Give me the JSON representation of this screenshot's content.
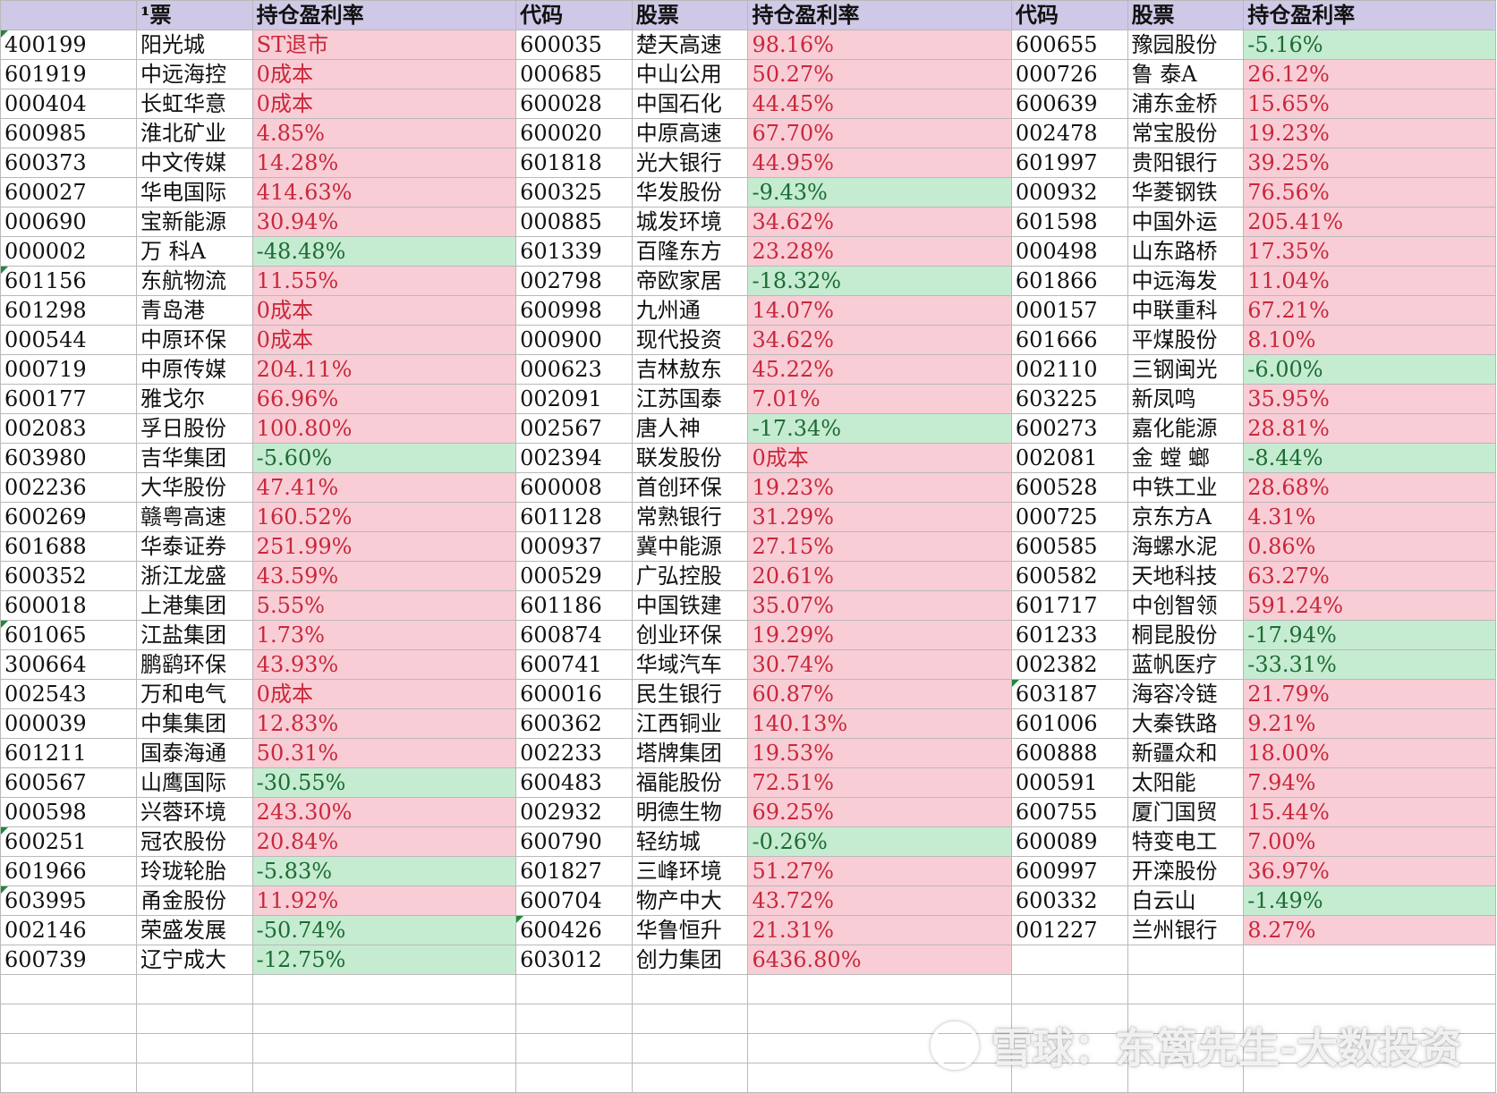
{
  "header_first": {
    "code": "",
    "stock": "¹票",
    "ratio": "持仓盈利率"
  },
  "header": {
    "code": "代码",
    "stock": "股票",
    "ratio": "持仓盈利率"
  },
  "groups": [
    [
      [
        "400199",
        "阳光城",
        "ST退市"
      ],
      [
        "601919",
        "中远海控",
        "0成本"
      ],
      [
        "000404",
        "长虹华意",
        "0成本"
      ],
      [
        "600985",
        "淮北矿业",
        "4.85%"
      ],
      [
        "600373",
        "中文传媒",
        "14.28%"
      ],
      [
        "600027",
        "华电国际",
        "414.63%"
      ],
      [
        "000690",
        "宝新能源",
        "30.94%"
      ],
      [
        "000002",
        "万 科A",
        "-48.48%"
      ],
      [
        "601156",
        "东航物流",
        "11.55%"
      ],
      [
        "601298",
        "青岛港",
        "0成本"
      ],
      [
        "000544",
        "中原环保",
        "0成本"
      ],
      [
        "000719",
        "中原传媒",
        "204.11%"
      ],
      [
        "600177",
        "雅戈尔",
        "66.96%"
      ],
      [
        "002083",
        "孚日股份",
        "100.80%"
      ],
      [
        "603980",
        "吉华集团",
        "-5.60%"
      ],
      [
        "002236",
        "大华股份",
        "47.41%"
      ],
      [
        "600269",
        "赣粤高速",
        "160.52%"
      ],
      [
        "601688",
        "华泰证券",
        "251.99%"
      ],
      [
        "600352",
        "浙江龙盛",
        "43.59%"
      ],
      [
        "600018",
        "上港集团",
        "5.55%"
      ],
      [
        "601065",
        "江盐集团",
        "1.73%"
      ],
      [
        "300664",
        "鹏鹞环保",
        "43.93%"
      ],
      [
        "002543",
        "万和电气",
        "0成本"
      ],
      [
        "000039",
        "中集集团",
        "12.83%"
      ],
      [
        "601211",
        "国泰海通",
        "50.31%"
      ],
      [
        "600567",
        "山鹰国际",
        "-30.55%"
      ],
      [
        "000598",
        "兴蓉环境",
        "243.30%"
      ],
      [
        "600251",
        "冠农股份",
        "20.84%"
      ],
      [
        "601966",
        "玲珑轮胎",
        "-5.83%"
      ],
      [
        "603995",
        "甬金股份",
        "11.92%"
      ],
      [
        "002146",
        "荣盛发展",
        "-50.74%"
      ],
      [
        "600739",
        "辽宁成大",
        "-12.75%"
      ]
    ],
    [
      [
        "600035",
        "楚天高速",
        "98.16%"
      ],
      [
        "000685",
        "中山公用",
        "50.27%"
      ],
      [
        "600028",
        "中国石化",
        "44.45%"
      ],
      [
        "600020",
        "中原高速",
        "67.70%"
      ],
      [
        "601818",
        "光大银行",
        "44.95%"
      ],
      [
        "600325",
        "华发股份",
        "-9.43%"
      ],
      [
        "000885",
        "城发环境",
        "34.62%"
      ],
      [
        "601339",
        "百隆东方",
        "23.28%"
      ],
      [
        "002798",
        "帝欧家居",
        "-18.32%"
      ],
      [
        "600998",
        "九州通",
        "14.07%"
      ],
      [
        "000900",
        "现代投资",
        "34.62%"
      ],
      [
        "000623",
        "吉林敖东",
        "45.22%"
      ],
      [
        "002091",
        "江苏国泰",
        "7.01%"
      ],
      [
        "002567",
        "唐人神",
        "-17.34%"
      ],
      [
        "002394",
        "联发股份",
        "0成本"
      ],
      [
        "600008",
        "首创环保",
        "19.23%"
      ],
      [
        "601128",
        "常熟银行",
        "31.29%"
      ],
      [
        "000937",
        "冀中能源",
        "27.15%"
      ],
      [
        "000529",
        "广弘控股",
        "20.61%"
      ],
      [
        "601186",
        "中国铁建",
        "35.07%"
      ],
      [
        "600874",
        "创业环保",
        "19.29%"
      ],
      [
        "600741",
        "华域汽车",
        "30.74%"
      ],
      [
        "600016",
        "民生银行",
        "60.87%"
      ],
      [
        "600362",
        "江西铜业",
        "140.13%"
      ],
      [
        "002233",
        "塔牌集团",
        "19.53%"
      ],
      [
        "600483",
        "福能股份",
        "72.51%"
      ],
      [
        "002932",
        "明德生物",
        "69.25%"
      ],
      [
        "600790",
        "轻纺城",
        "-0.26%"
      ],
      [
        "601827",
        "三峰环境",
        "51.27%"
      ],
      [
        "600704",
        "物产中大",
        "43.72%"
      ],
      [
        "600426",
        "华鲁恒升",
        "21.31%"
      ],
      [
        "603012",
        "创力集团",
        "6436.80%"
      ]
    ],
    [
      [
        "600655",
        "豫园股份",
        "-5.16%"
      ],
      [
        "000726",
        "鲁 泰A",
        "26.12%"
      ],
      [
        "600639",
        "浦东金桥",
        "15.65%"
      ],
      [
        "002478",
        "常宝股份",
        "19.23%"
      ],
      [
        "601997",
        "贵阳银行",
        "39.25%"
      ],
      [
        "000932",
        "华菱钢铁",
        "76.56%"
      ],
      [
        "601598",
        "中国外运",
        "205.41%"
      ],
      [
        "000498",
        "山东路桥",
        "17.35%"
      ],
      [
        "601866",
        "中远海发",
        "11.04%"
      ],
      [
        "000157",
        "中联重科",
        "67.21%"
      ],
      [
        "601666",
        "平煤股份",
        "8.10%"
      ],
      [
        "002110",
        "三钢闽光",
        "-6.00%"
      ],
      [
        "603225",
        "新凤鸣",
        "35.95%"
      ],
      [
        "600273",
        "嘉化能源",
        "28.81%"
      ],
      [
        "002081",
        "金 螳 螂",
        "-8.44%"
      ],
      [
        "600528",
        "中铁工业",
        "28.68%"
      ],
      [
        "000725",
        "京东方A",
        "4.31%"
      ],
      [
        "600585",
        "海螺水泥",
        "0.86%"
      ],
      [
        "600582",
        "天地科技",
        "63.27%"
      ],
      [
        "601717",
        "中创智领",
        "591.24%"
      ],
      [
        "601233",
        "桐昆股份",
        "-17.94%"
      ],
      [
        "002382",
        "蓝帆医疗",
        "-33.31%"
      ],
      [
        "603187",
        "海容冷链",
        "21.79%"
      ],
      [
        "601006",
        "大秦铁路",
        "9.21%"
      ],
      [
        "600888",
        "新疆众和",
        "18.00%"
      ],
      [
        "000591",
        "太阳能",
        "7.94%"
      ],
      [
        "600755",
        "厦门国贸",
        "15.44%"
      ],
      [
        "600089",
        "特变电工",
        "7.00%"
      ],
      [
        "600997",
        "开滦股份",
        "36.97%"
      ],
      [
        "600332",
        "白云山",
        "-1.49%"
      ],
      [
        "001227",
        "兰州银行",
        "8.27%"
      ]
    ]
  ],
  "flag_cells": {
    "0": [
      0,
      8,
      20,
      27,
      29
    ],
    "1": [
      30
    ],
    "2": [
      22
    ]
  },
  "empty_rows": 4,
  "watermark": "雪球：东篱先生-大数投资",
  "colors": {
    "positive_fill": "#f8cdd6",
    "negative_fill": "#c5ecd1",
    "header_fill": "#cfc8e6",
    "flag": "#1f8a3a"
  }
}
